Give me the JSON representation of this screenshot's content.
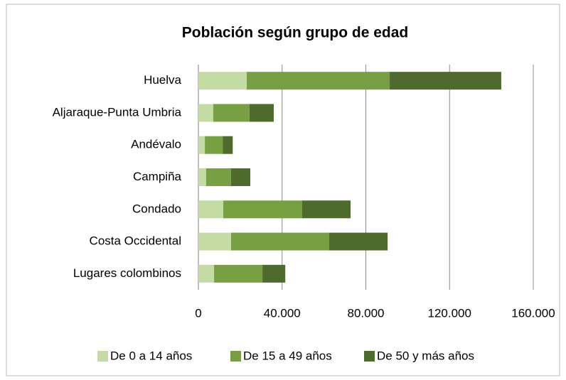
{
  "chart_data": {
    "type": "stacked_barh",
    "title": "Población según grupo de edad",
    "categories": [
      "Huelva",
      "Aljaraque-Punta Umbria",
      "Andévalo",
      "Campiña",
      "Condado",
      "Costa Occidental",
      "Lugares colombinos"
    ],
    "series": [
      {
        "name": "De 0 a 14 años",
        "color": "#c4dca4",
        "values": [
          23100,
          7100,
          3100,
          3700,
          11900,
          15600,
          7500
        ]
      },
      {
        "name": "De 15 a 49 años",
        "color": "#77a043",
        "values": [
          68300,
          17300,
          8500,
          11900,
          37700,
          46900,
          23100
        ]
      },
      {
        "name": "De 50 y más años",
        "color": "#4e6a2c",
        "values": [
          53300,
          11600,
          4800,
          9200,
          23100,
          27900,
          10900
        ]
      }
    ],
    "xlim": [
      0,
      160000
    ],
    "xticks": [
      0,
      {
        "value": 40000,
        "label": "40.000"
      },
      {
        "value": 80000,
        "label": "80.000"
      },
      {
        "value": 120000,
        "label": "120.000"
      },
      {
        "value": 160000,
        "label": "160.000"
      }
    ],
    "grid": true,
    "legend": "bottom"
  }
}
